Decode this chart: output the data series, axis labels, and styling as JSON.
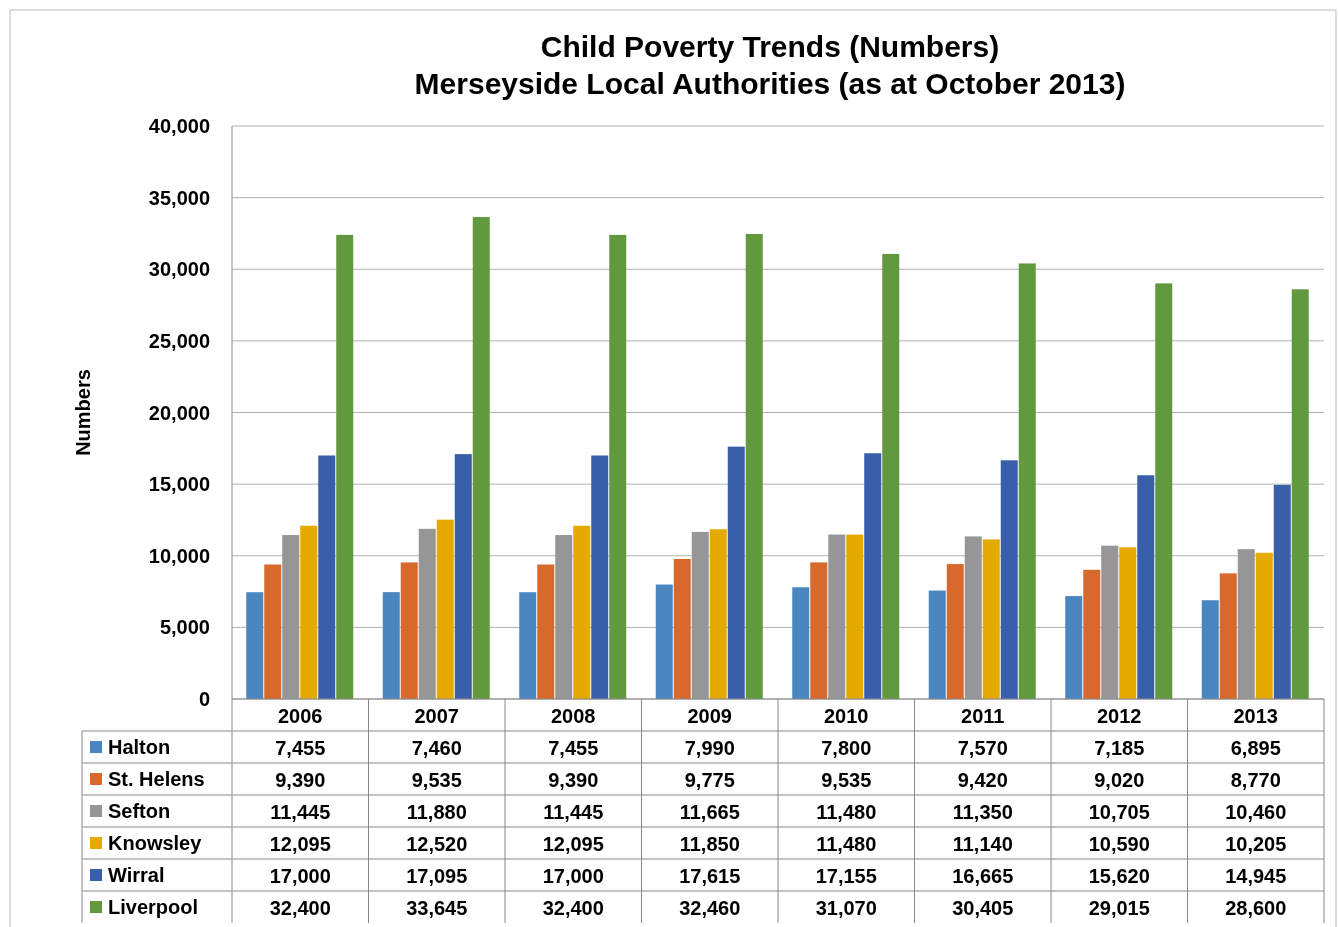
{
  "chart_data": {
    "type": "bar",
    "title": "Child Poverty Trends (Numbers)",
    "subtitle": "Merseyside Local Authorities (as at October 2013)",
    "ylabel": "Numbers",
    "categories": [
      "2006",
      "2007",
      "2008",
      "2009",
      "2010",
      "2011",
      "2012",
      "2013"
    ],
    "ylim": [
      0,
      40000
    ],
    "yticks": [
      {
        "value": 0,
        "label": "0"
      },
      {
        "value": 5000,
        "label": "5,000"
      },
      {
        "value": 10000,
        "label": "10,000"
      },
      {
        "value": 15000,
        "label": "15,000"
      },
      {
        "value": 20000,
        "label": "20,000"
      },
      {
        "value": 25000,
        "label": "25,000"
      },
      {
        "value": 30000,
        "label": "30,000"
      },
      {
        "value": 35000,
        "label": "35,000"
      },
      {
        "value": 40000,
        "label": "40,000"
      }
    ],
    "grid": "y",
    "legend": "bottom",
    "series": [
      {
        "name": "Halton",
        "color": "#4a87c0",
        "values": [
          7455,
          7460,
          7455,
          7990,
          7800,
          7570,
          7185,
          6895
        ],
        "value_labels": [
          "7,455",
          "7,460",
          "7,455",
          "7,990",
          "7,800",
          "7,570",
          "7,185",
          "6,895"
        ]
      },
      {
        "name": "St. Helens",
        "color": "#d8692c",
        "values": [
          9390,
          9535,
          9390,
          9775,
          9535,
          9420,
          9020,
          8770
        ],
        "value_labels": [
          "9,390",
          "9,535",
          "9,390",
          "9,775",
          "9,535",
          "9,420",
          "9,020",
          "8,770"
        ]
      },
      {
        "name": "Sefton",
        "color": "#969696",
        "values": [
          11445,
          11880,
          11445,
          11665,
          11480,
          11350,
          10705,
          10460
        ],
        "value_labels": [
          "11,445",
          "11,880",
          "11,445",
          "11,665",
          "11,480",
          "11,350",
          "10,705",
          "10,460"
        ]
      },
      {
        "name": "Knowsley",
        "color": "#e6a900",
        "values": [
          12095,
          12520,
          12095,
          11850,
          11480,
          11140,
          10590,
          10205
        ],
        "value_labels": [
          "12,095",
          "12,520",
          "12,095",
          "11,850",
          "11,480",
          "11,140",
          "10,590",
          "10,205"
        ]
      },
      {
        "name": "Wirral",
        "color": "#3a5faa",
        "values": [
          17000,
          17095,
          17000,
          17615,
          17155,
          16665,
          15620,
          14945
        ],
        "value_labels": [
          "17,000",
          "17,095",
          "17,000",
          "17,615",
          "17,155",
          "16,665",
          "15,620",
          "14,945"
        ]
      },
      {
        "name": "Liverpool",
        "color": "#62993f",
        "values": [
          32400,
          33645,
          32400,
          32460,
          31070,
          30405,
          29015,
          28600
        ],
        "value_labels": [
          "32,400",
          "33,645",
          "32,400",
          "32,460",
          "31,070",
          "30,405",
          "29,015",
          "28,600"
        ]
      }
    ]
  }
}
